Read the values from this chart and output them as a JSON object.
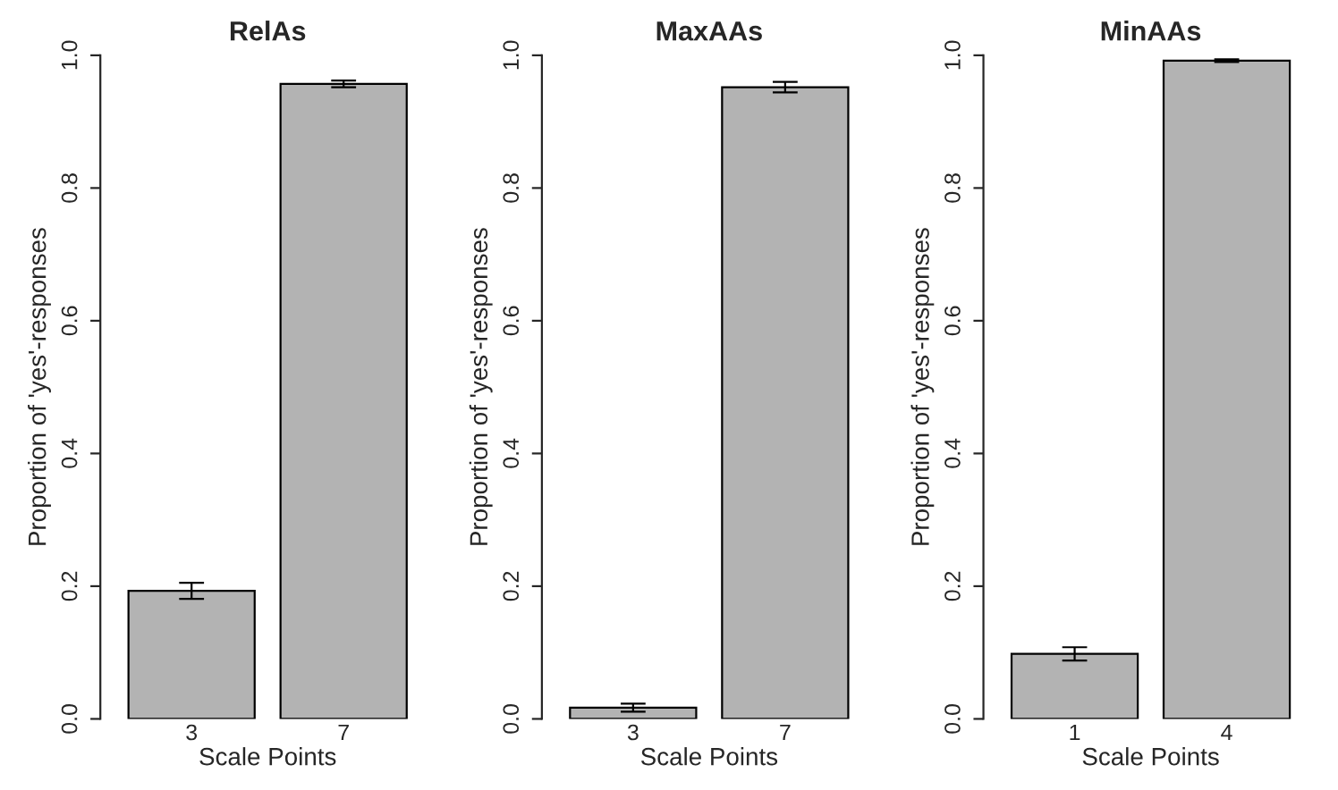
{
  "chart_data": [
    {
      "type": "bar",
      "title": "RelAs",
      "xlabel": "Scale Points",
      "ylabel": "Proportion of 'yes'-responses",
      "categories": [
        "3",
        "7"
      ],
      "values": [
        0.193,
        0.957
      ],
      "errors": [
        0.012,
        0.005
      ],
      "color": "#b3b3b3",
      "ylim": [
        0,
        1
      ],
      "yticks": [
        {
          "value": 0,
          "label": "0.0"
        },
        {
          "value": 0.2,
          "label": "0.2"
        },
        {
          "value": 0.4,
          "label": "0.4"
        },
        {
          "value": 0.6,
          "label": "0.6"
        },
        {
          "value": 0.8,
          "label": "0.8"
        },
        {
          "value": 1,
          "label": "1.0"
        }
      ],
      "grid": false,
      "legend": false
    },
    {
      "type": "bar",
      "title": "MaxAAs",
      "xlabel": "Scale Points",
      "ylabel": "Proportion of 'yes'-responses",
      "categories": [
        "3",
        "7"
      ],
      "values": [
        0.017,
        0.952
      ],
      "errors": [
        0.006,
        0.008
      ],
      "color": "#b3b3b3",
      "ylim": [
        0,
        1
      ],
      "yticks": [
        {
          "value": 0,
          "label": "0.0"
        },
        {
          "value": 0.2,
          "label": "0.2"
        },
        {
          "value": 0.4,
          "label": "0.4"
        },
        {
          "value": 0.6,
          "label": "0.6"
        },
        {
          "value": 0.8,
          "label": "0.8"
        },
        {
          "value": 1,
          "label": "1.0"
        }
      ],
      "grid": false,
      "legend": false
    },
    {
      "type": "bar",
      "title": "MinAAs",
      "xlabel": "Scale Points",
      "ylabel": "Proportion of 'yes'-responses",
      "categories": [
        "1",
        "4"
      ],
      "values": [
        0.098,
        0.992
      ],
      "errors": [
        0.01,
        0.002
      ],
      "color": "#b3b3b3",
      "ylim": [
        0,
        1
      ],
      "yticks": [
        {
          "value": 0,
          "label": "0.0"
        },
        {
          "value": 0.2,
          "label": "0.2"
        },
        {
          "value": 0.4,
          "label": "0.4"
        },
        {
          "value": 0.6,
          "label": "0.6"
        },
        {
          "value": 0.8,
          "label": "0.8"
        },
        {
          "value": 1,
          "label": "1.0"
        }
      ],
      "grid": false,
      "legend": false
    }
  ]
}
